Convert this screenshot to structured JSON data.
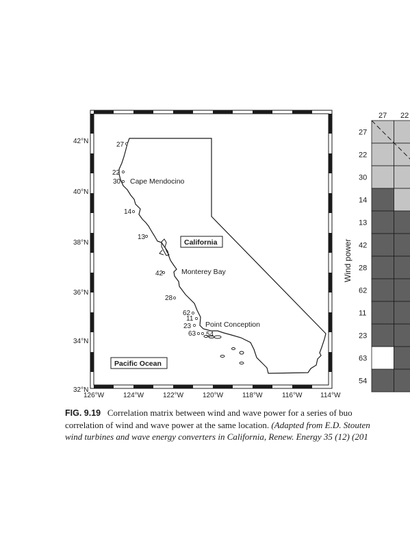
{
  "map": {
    "lat_labels": [
      "42°N",
      "40°N",
      "38°N",
      "36°N",
      "34°N",
      "32°N"
    ],
    "lon_labels": [
      "126°W",
      "124°W",
      "122°W",
      "120°W",
      "118°W",
      "116°W",
      "114°W"
    ],
    "places": {
      "california": "California",
      "cape_mendocino": "Cape Mendocino",
      "monterey_bay": "Monterey Bay",
      "point_conception": "Point Conception",
      "pacific_ocean": "Pacific Ocean"
    },
    "buoys": [
      "27",
      "22",
      "30",
      "14",
      "13",
      "42",
      "28",
      "62",
      "11",
      "23",
      "63",
      "54"
    ]
  },
  "matrix": {
    "top_labels": [
      "27",
      "22"
    ],
    "row_labels": [
      "27",
      "22",
      "30",
      "14",
      "13",
      "42",
      "28",
      "62",
      "11",
      "23",
      "63",
      "54"
    ],
    "y_axis_label": "Wind power",
    "column1_shades": [
      "light",
      "light",
      "light",
      "dark",
      "dark",
      "dark",
      "dark",
      "dark",
      "dark",
      "dark",
      "white",
      "dark"
    ],
    "column2_shades": [
      "light",
      "light",
      "light",
      "light",
      "dark",
      "dark",
      "dark",
      "dark",
      "dark",
      "dark",
      "dark",
      "dark"
    ],
    "colors": {
      "light": "#c4c4c4",
      "dark": "#606060",
      "white": "#ffffff"
    }
  },
  "caption": {
    "fig_label": "FIG. 9.19",
    "line1": "Correlation matrix between wind and wave power for a series of buo",
    "line2_plain": "correlation of wind and wave power at the same location. ",
    "line2_italic": "(Adapted from E.D. Stouten",
    "line3_italic": "wind turbines and wave energy converters in California, Renew. Energy 35 (12) (201"
  }
}
